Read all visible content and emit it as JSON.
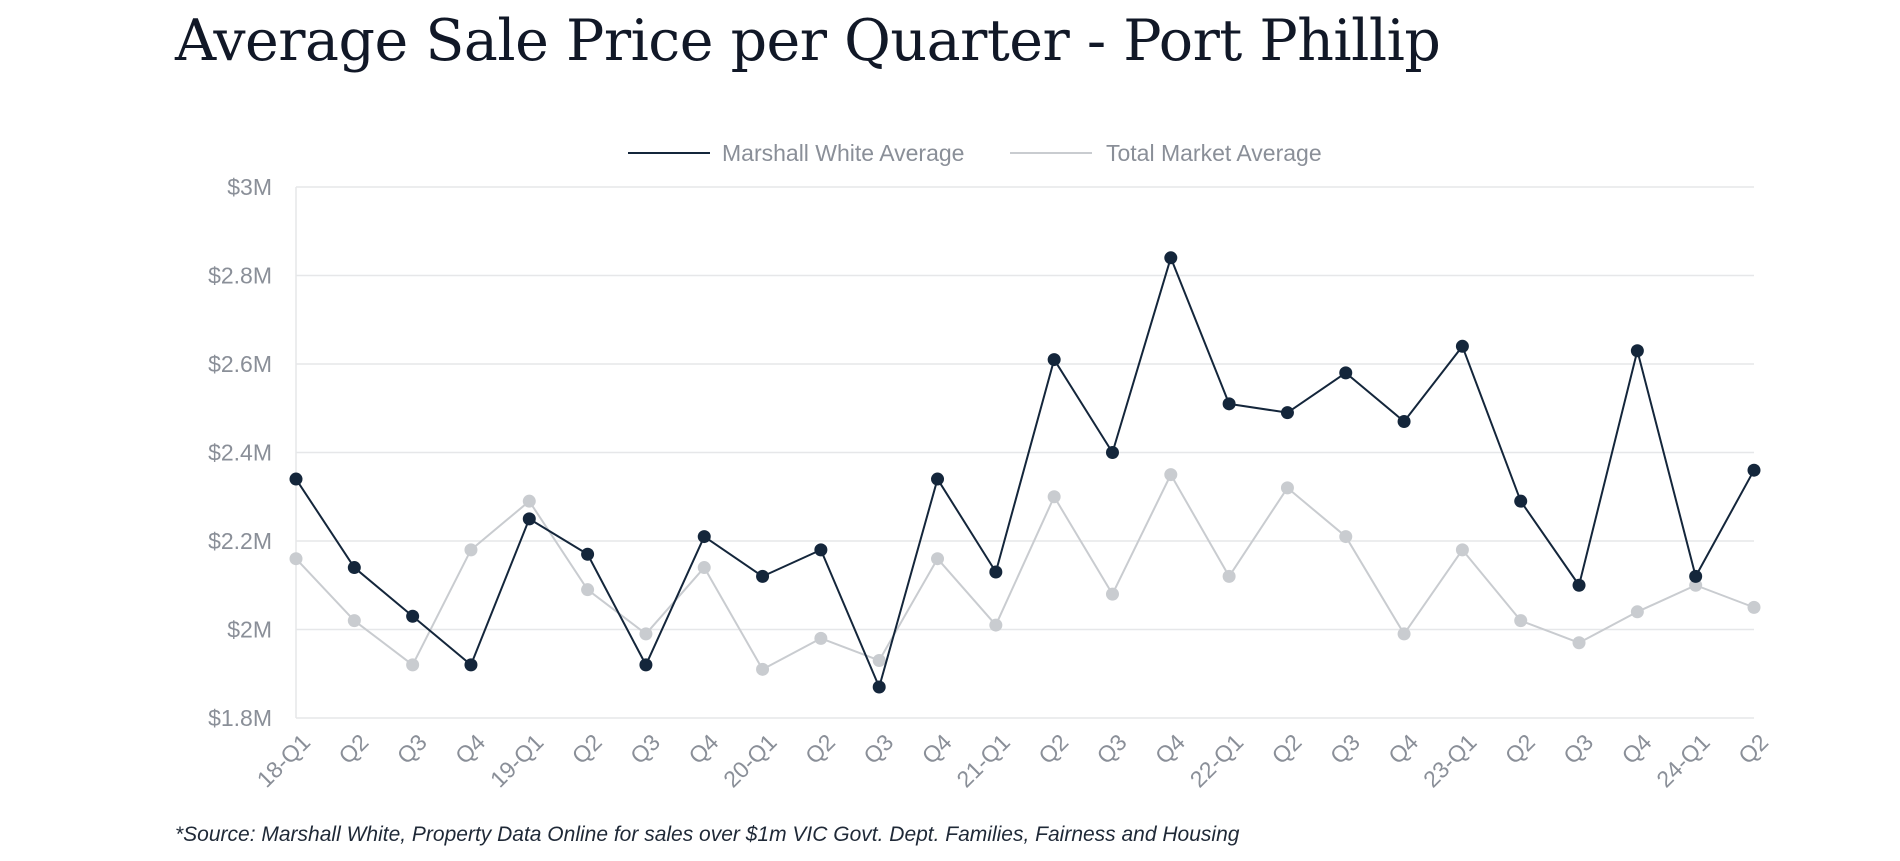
{
  "title": "Average Sale Price per Quarter - Port Phillip",
  "source": "*Source: Marshall White, Property Data Online for sales over $1m VIC Govt. Dept. Families, Fairness and Housing",
  "colors": {
    "mw": "#14263b",
    "market": "#c9ccd0",
    "grid": "#e6e7e9",
    "axis": "#8a8f98"
  },
  "chart_data": {
    "type": "line",
    "title": "Average Sale Price per Quarter - Port Phillip",
    "categories": [
      "18-Q1",
      "Q2",
      "Q3",
      "Q4",
      "19-Q1",
      "Q2",
      "Q3",
      "Q4",
      "20-Q1",
      "Q2",
      "Q3",
      "Q4",
      "21-Q1",
      "Q2",
      "Q3",
      "Q4",
      "22-Q1",
      "Q2",
      "Q3",
      "Q4",
      "23-Q1",
      "Q2",
      "Q3",
      "Q4",
      "24-Q1",
      "Q2"
    ],
    "series": [
      {
        "name": "Marshall White Average",
        "values": [
          2.34,
          2.14,
          2.03,
          1.92,
          2.25,
          2.17,
          1.92,
          2.21,
          2.12,
          2.18,
          1.87,
          2.34,
          2.13,
          2.61,
          2.4,
          2.84,
          2.51,
          2.49,
          2.58,
          2.47,
          2.64,
          2.29,
          2.1,
          2.63,
          2.12,
          2.36
        ]
      },
      {
        "name": "Total Market Average",
        "values": [
          2.16,
          2.02,
          1.92,
          2.18,
          2.29,
          2.09,
          1.99,
          2.14,
          1.91,
          1.98,
          1.93,
          2.16,
          2.01,
          2.3,
          2.08,
          2.35,
          2.12,
          2.32,
          2.21,
          1.99,
          2.18,
          2.02,
          1.97,
          2.04,
          2.1,
          2.05
        ]
      }
    ],
    "ylim": [
      1.8,
      3.0
    ],
    "yticks": [
      1.8,
      2.0,
      2.2,
      2.4,
      2.6,
      2.8,
      3.0
    ],
    "ytick_labels": [
      "$1.8M",
      "$2M",
      "$2.2M",
      "$2.4M",
      "$2.6M",
      "$2.8M",
      "$3M"
    ],
    "grid": true,
    "legend_position": "top-center"
  }
}
